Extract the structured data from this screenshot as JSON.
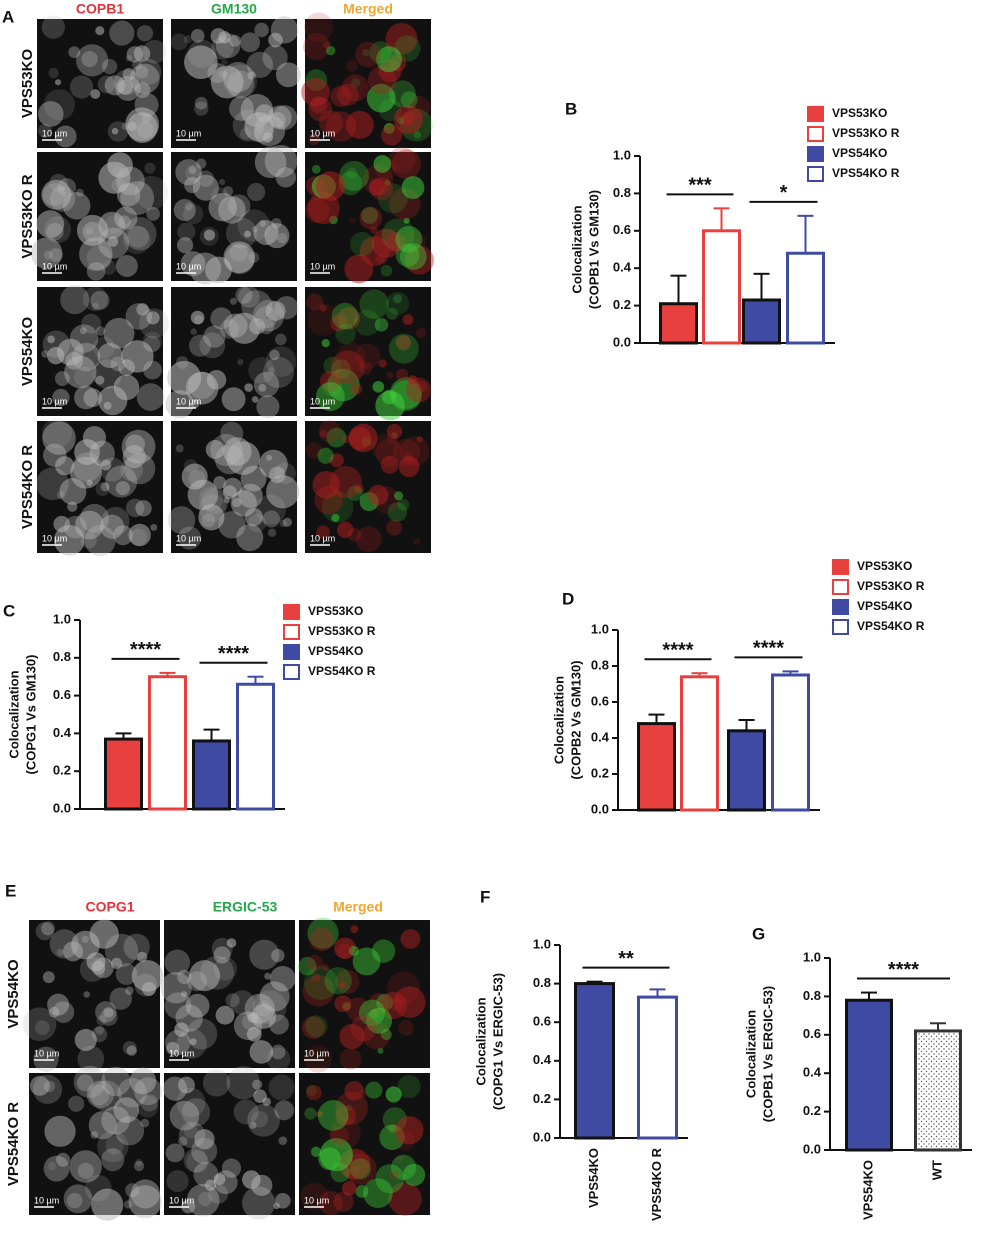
{
  "panel_a": {
    "label": "A",
    "headers": [
      "COPB1",
      "GM130",
      "Merged"
    ],
    "rows": [
      "VPS53KO",
      "VPS53KO R",
      "VPS54KO",
      "VPS54KO R"
    ],
    "scale_bar": "10 µm"
  },
  "panel_e": {
    "label": "E",
    "headers": [
      "COPG1",
      "ERGIC-53",
      "Merged"
    ],
    "rows": [
      "VPS54KO",
      "VPS54KO R"
    ],
    "scale_bar": "10 µm"
  },
  "chart_data": [
    {
      "type": "bar",
      "panel_label": "B",
      "ylabel": [
        "Colocalization",
        "(COPB1 Vs GM130)"
      ],
      "ylim": [
        0,
        1
      ],
      "yticks": [
        {
          "value": 0,
          "label": "0.0"
        },
        0.2,
        0.4,
        0.6,
        0.8,
        {
          "value": 1,
          "label": "1.0"
        }
      ],
      "series": [
        {
          "name": "VPS53KO",
          "color": "#e8403f",
          "fill": "solid",
          "values": [
            0.21
          ],
          "errors": [
            0.15
          ]
        },
        {
          "name": "VPS53KO R",
          "color": "#e8403f",
          "fill": "none",
          "values": [
            0.6
          ],
          "errors": [
            0.12
          ]
        },
        {
          "name": "VPS54KO",
          "color": "#3f4ba3",
          "fill": "solid",
          "values": [
            0.23
          ],
          "errors": [
            0.14
          ]
        },
        {
          "name": "VPS54KO R",
          "color": "#3f4ba3",
          "fill": "none",
          "values": [
            0.48
          ],
          "errors": [
            0.2
          ]
        }
      ],
      "annotations": [
        "***",
        "*"
      ]
    },
    {
      "type": "bar",
      "panel_label": "C",
      "ylabel": [
        "Colocalization",
        "(COPG1 Vs GM130)"
      ],
      "ylim": [
        0,
        1
      ],
      "yticks": [
        {
          "value": 0,
          "label": "0.0"
        },
        0.2,
        0.4,
        0.6,
        0.8,
        {
          "value": 1,
          "label": "1.0"
        }
      ],
      "series": [
        {
          "name": "VPS53KO",
          "color": "#e8403f",
          "fill": "solid",
          "values": [
            0.37
          ],
          "errors": [
            0.03
          ]
        },
        {
          "name": "VPS53KO R",
          "color": "#e8403f",
          "fill": "none",
          "values": [
            0.7
          ],
          "errors": [
            0.02
          ]
        },
        {
          "name": "VPS54KO",
          "color": "#3f4ba3",
          "fill": "solid",
          "values": [
            0.36
          ],
          "errors": [
            0.06
          ]
        },
        {
          "name": "VPS54KO R",
          "color": "#3f4ba3",
          "fill": "none",
          "values": [
            0.66
          ],
          "errors": [
            0.04
          ]
        }
      ],
      "annotations": [
        "****",
        "****"
      ]
    },
    {
      "type": "bar",
      "panel_label": "D",
      "ylabel": [
        "Colocalization",
        "(COPB2 Vs GM130)"
      ],
      "ylim": [
        0,
        1
      ],
      "yticks": [
        {
          "value": 0,
          "label": "0.0"
        },
        0.2,
        0.4,
        0.6,
        0.8,
        {
          "value": 1,
          "label": "1.0"
        }
      ],
      "series": [
        {
          "name": "VPS53KO",
          "color": "#e8403f",
          "fill": "solid",
          "values": [
            0.48
          ],
          "errors": [
            0.05
          ]
        },
        {
          "name": "VPS53KO R",
          "color": "#e8403f",
          "fill": "none",
          "values": [
            0.74
          ],
          "errors": [
            0.02
          ]
        },
        {
          "name": "VPS54KO",
          "color": "#3f4ba3",
          "fill": "solid",
          "values": [
            0.44
          ],
          "errors": [
            0.06
          ]
        },
        {
          "name": "VPS54KO R",
          "color": "#3f4ba3",
          "fill": "none",
          "values": [
            0.75
          ],
          "errors": [
            0.02
          ]
        }
      ],
      "annotations": [
        "****",
        "****"
      ]
    },
    {
      "type": "bar",
      "panel_label": "F",
      "ylabel": [
        "Colocalization",
        "(COPG1 Vs ERGIC-53)"
      ],
      "ylim": [
        0,
        1
      ],
      "yticks": [
        {
          "value": 0,
          "label": "0.0"
        },
        0.2,
        0.4,
        0.6,
        0.8,
        {
          "value": 1,
          "label": "1.0"
        }
      ],
      "categories": [
        "VPS54KO",
        "VPS54KO R"
      ],
      "values": [
        0.8,
        0.73
      ],
      "errors": [
        0.01,
        0.04
      ],
      "colors": [
        "#3f4ba3",
        "#3f4ba3"
      ],
      "fills": [
        "solid",
        "none"
      ],
      "annotations": [
        "**"
      ]
    },
    {
      "type": "bar",
      "panel_label": "G",
      "ylabel": [
        "Colocalization",
        "(COPB1 Vs ERGIC-53)"
      ],
      "ylim": [
        0,
        1
      ],
      "yticks": [
        {
          "value": 0,
          "label": "0.0"
        },
        0.2,
        0.4,
        0.6,
        0.8,
        {
          "value": 1,
          "label": "1.0"
        }
      ],
      "categories": [
        "VPS54KO",
        "WT"
      ],
      "values": [
        0.78,
        0.62
      ],
      "errors": [
        0.04,
        0.04
      ],
      "colors": [
        "#3f4ba3",
        "#333333"
      ],
      "fills": [
        "solid",
        "dots"
      ],
      "annotations": [
        "****"
      ]
    }
  ]
}
